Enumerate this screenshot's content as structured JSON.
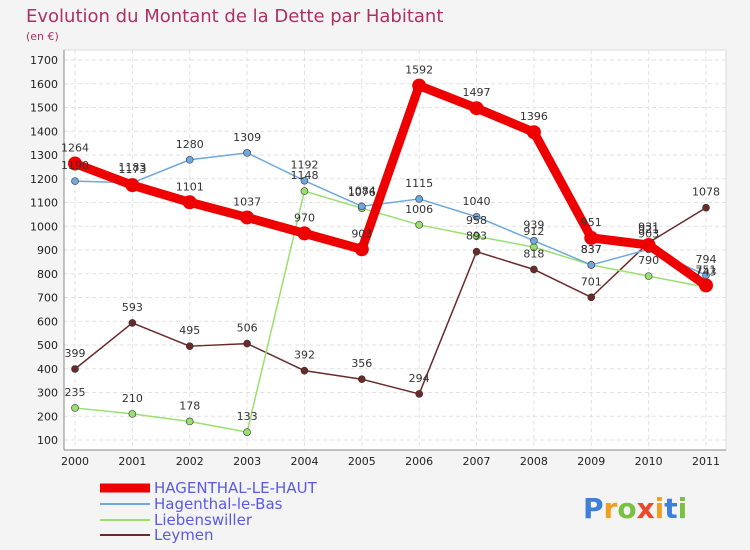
{
  "chart_data": {
    "type": "line",
    "title": "Evolution du Montant de la Dette par Habitant",
    "subtitle": "(en €)",
    "categories": [
      "2000",
      "2001",
      "2002",
      "2003",
      "2004",
      "2005",
      "2006",
      "2007",
      "2008",
      "2009",
      "2010",
      "2011"
    ],
    "ylim": [
      100,
      1700
    ],
    "yticks": [
      100,
      200,
      300,
      400,
      500,
      600,
      700,
      800,
      900,
      1000,
      1100,
      1200,
      1300,
      1400,
      1500,
      1600,
      1700
    ],
    "series": [
      {
        "name": "HAGENTHAL-LE-HAUT",
        "color": "#ee0000",
        "values": [
          1264,
          1173,
          1101,
          1037,
          970,
          903,
          1592,
          1497,
          1396,
          951,
          921,
          751
        ]
      },
      {
        "name": "Hagenthal-le-Bas",
        "color": "#6fa8dc",
        "values": [
          1190,
          1183,
          1280,
          1309,
          1192,
          1084,
          1115,
          1040,
          939,
          837,
          903,
          794
        ]
      },
      {
        "name": "Liebenswiller",
        "color": "#99e06e",
        "values": [
          235,
          210,
          178,
          133,
          1148,
          1076,
          1006,
          958,
          912,
          837,
          790,
          743
        ]
      },
      {
        "name": "Leymen",
        "color": "#6b2a2a",
        "values": [
          399,
          593,
          495,
          506,
          392,
          356,
          294,
          893,
          818,
          701,
          931,
          1078
        ]
      }
    ]
  },
  "logo": {
    "letters": [
      "P",
      "r",
      "o",
      "x",
      "i",
      "t",
      "i"
    ],
    "colors": [
      "#3d7fd9",
      "#f0a020",
      "#7ac143",
      "#e84a2a",
      "#f0a020",
      "#3d7fd9",
      "#7ac143"
    ]
  }
}
